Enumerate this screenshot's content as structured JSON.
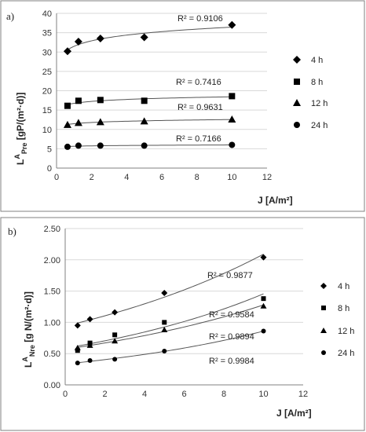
{
  "chart_data": [
    {
      "type": "scatter",
      "panel_label": "a)",
      "xlabel": "J [A/m²]",
      "ylabel": {
        "base": "L",
        "sup": "A",
        "sub": "Pre",
        "rest": " [gP/(m²·d)]"
      },
      "xlim": [
        0,
        12
      ],
      "ylim": [
        0,
        40
      ],
      "xticks": [
        "0",
        "2",
        "4",
        "6",
        "8",
        "10",
        "12"
      ],
      "yticks": [
        "0",
        "5",
        "10",
        "15",
        "20",
        "25",
        "30",
        "35",
        "40"
      ],
      "grid": "horizontal",
      "legend_position": "right",
      "x": [
        0.625,
        1.25,
        2.5,
        5,
        10
      ],
      "series": [
        {
          "name": "4 h",
          "marker": "diamond",
          "values": [
            30.2,
            32.7,
            33.5,
            33.8,
            37.0
          ],
          "r2": "R² = 0.9106"
        },
        {
          "name": "8 h",
          "marker": "square",
          "values": [
            16.1,
            17.4,
            17.6,
            17.4,
            18.6
          ],
          "r2": "R² = 0.7416"
        },
        {
          "name": "12 h",
          "marker": "triangle",
          "values": [
            11.2,
            11.7,
            11.9,
            12.1,
            12.6
          ],
          "r2": "R² = 0.9631"
        },
        {
          "name": "24 h",
          "marker": "circle",
          "values": [
            5.5,
            5.8,
            5.8,
            5.8,
            6.0
          ],
          "r2": "R² = 0.7166"
        }
      ]
    },
    {
      "type": "scatter",
      "panel_label": "b)",
      "xlabel": "J [A/m²]",
      "ylabel": {
        "base": "L",
        "sup": "A",
        "sub": "Nre",
        "rest": " [g N/(m²·d)]"
      },
      "xlim": [
        0,
        12
      ],
      "ylim": [
        0,
        2.5
      ],
      "xticks": [
        "0",
        "2",
        "4",
        "6",
        "8",
        "10",
        "12"
      ],
      "yticks": [
        "0.00",
        "0.50",
        "1.00",
        "1.50",
        "2.00",
        "2.50"
      ],
      "grid": "horizontal",
      "legend_position": "right",
      "x": [
        0.625,
        1.25,
        2.5,
        5,
        10
      ],
      "series": [
        {
          "name": "4 h",
          "marker": "diamond",
          "values": [
            0.95,
            1.05,
            1.16,
            1.47,
            2.04
          ],
          "r2": "R² = 0.9877"
        },
        {
          "name": "8 h",
          "marker": "square",
          "values": [
            0.55,
            0.67,
            0.8,
            1.0,
            1.38
          ],
          "r2": "R² = 0.9584"
        },
        {
          "name": "12 h",
          "marker": "triangle",
          "values": [
            0.59,
            0.63,
            0.7,
            0.88,
            1.26
          ],
          "r2": "R² = 0.9894"
        },
        {
          "name": "24 h",
          "marker": "circle",
          "values": [
            0.35,
            0.39,
            0.41,
            0.54,
            0.86
          ],
          "r2": "R² = 0.9984"
        }
      ]
    }
  ]
}
